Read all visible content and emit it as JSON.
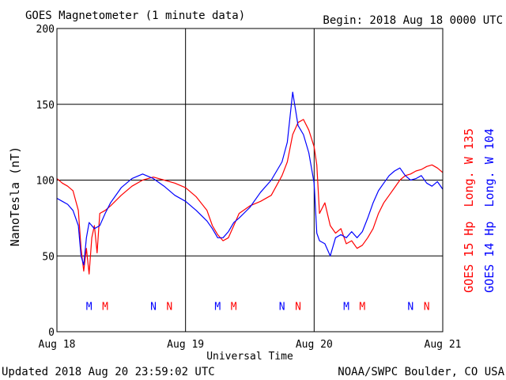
{
  "chart_data": {
    "type": "line",
    "title": "GOES Magnetometer (1 minute data)",
    "begin_label": "Begin:  2018 Aug 18 0000 UTC",
    "xlabel": "Universal Time",
    "ylabel": "NanoTesla (nT)",
    "ylim": [
      0,
      200
    ],
    "yticks": [
      "0",
      "50",
      "100",
      "150",
      "200"
    ],
    "xlim": [
      0,
      72
    ],
    "x_unit": "hours since 2018 Aug 18 0000 UTC",
    "xticks": [
      {
        "x": 0,
        "label": "Aug 18"
      },
      {
        "x": 24,
        "label": "Aug 19"
      },
      {
        "x": 48,
        "label": "Aug 20"
      },
      {
        "x": 72,
        "label": "Aug 21"
      }
    ],
    "grid": true,
    "series": [
      {
        "name": "GOES 15 Hp  Long. W 135",
        "color": "#ff0000",
        "points": [
          [
            0,
            101
          ],
          [
            1,
            98
          ],
          [
            2,
            96
          ],
          [
            3,
            93
          ],
          [
            4,
            80
          ],
          [
            4.5,
            55
          ],
          [
            5,
            40
          ],
          [
            5.5,
            55
          ],
          [
            6,
            38
          ],
          [
            6.5,
            62
          ],
          [
            7,
            70
          ],
          [
            7.5,
            52
          ],
          [
            8,
            78
          ],
          [
            9,
            80
          ],
          [
            10,
            83
          ],
          [
            12,
            90
          ],
          [
            14,
            96
          ],
          [
            16,
            100
          ],
          [
            18,
            102
          ],
          [
            20,
            100
          ],
          [
            22,
            98
          ],
          [
            24,
            95
          ],
          [
            26,
            89
          ],
          [
            28,
            80
          ],
          [
            29,
            70
          ],
          [
            30,
            64
          ],
          [
            31,
            60
          ],
          [
            32,
            62
          ],
          [
            33,
            70
          ],
          [
            34,
            78
          ],
          [
            36,
            83
          ],
          [
            38,
            86
          ],
          [
            40,
            90
          ],
          [
            42,
            103
          ],
          [
            43,
            112
          ],
          [
            44,
            130
          ],
          [
            45,
            138
          ],
          [
            46,
            140
          ],
          [
            47,
            133
          ],
          [
            48,
            122
          ],
          [
            48.5,
            110
          ],
          [
            49,
            78
          ],
          [
            50,
            85
          ],
          [
            51,
            70
          ],
          [
            52,
            65
          ],
          [
            53,
            68
          ],
          [
            54,
            58
          ],
          [
            55,
            60
          ],
          [
            56,
            55
          ],
          [
            57,
            57
          ],
          [
            58,
            62
          ],
          [
            59,
            68
          ],
          [
            60,
            78
          ],
          [
            61,
            85
          ],
          [
            62,
            90
          ],
          [
            63,
            95
          ],
          [
            64,
            100
          ],
          [
            65,
            103
          ],
          [
            66,
            104
          ],
          [
            67,
            106
          ],
          [
            68,
            107
          ],
          [
            69,
            109
          ],
          [
            70,
            110
          ],
          [
            71,
            108
          ],
          [
            72,
            105
          ]
        ]
      },
      {
        "name": "GOES 14 Hp  Long. W 104",
        "color": "#0000ff",
        "points": [
          [
            0,
            88
          ],
          [
            1,
            86
          ],
          [
            2,
            84
          ],
          [
            3,
            80
          ],
          [
            4,
            70
          ],
          [
            4.5,
            50
          ],
          [
            5,
            44
          ],
          [
            5.5,
            62
          ],
          [
            6,
            72
          ],
          [
            7,
            68
          ],
          [
            8,
            70
          ],
          [
            9,
            78
          ],
          [
            10,
            85
          ],
          [
            12,
            95
          ],
          [
            14,
            101
          ],
          [
            16,
            104
          ],
          [
            18,
            101
          ],
          [
            20,
            96
          ],
          [
            22,
            90
          ],
          [
            24,
            86
          ],
          [
            26,
            80
          ],
          [
            28,
            73
          ],
          [
            29,
            68
          ],
          [
            30,
            62
          ],
          [
            31,
            62
          ],
          [
            32,
            66
          ],
          [
            33,
            72
          ],
          [
            34,
            75
          ],
          [
            36,
            82
          ],
          [
            38,
            92
          ],
          [
            40,
            100
          ],
          [
            42,
            112
          ],
          [
            43,
            125
          ],
          [
            44,
            158
          ],
          [
            45,
            136
          ],
          [
            46,
            130
          ],
          [
            47,
            118
          ],
          [
            48,
            98
          ],
          [
            48.5,
            65
          ],
          [
            49,
            60
          ],
          [
            50,
            58
          ],
          [
            51,
            50
          ],
          [
            52,
            62
          ],
          [
            53,
            64
          ],
          [
            54,
            62
          ],
          [
            55,
            66
          ],
          [
            56,
            62
          ],
          [
            57,
            66
          ],
          [
            58,
            75
          ],
          [
            59,
            85
          ],
          [
            60,
            93
          ],
          [
            61,
            98
          ],
          [
            62,
            103
          ],
          [
            63,
            106
          ],
          [
            64,
            108
          ],
          [
            65,
            103
          ],
          [
            66,
            100
          ],
          [
            67,
            101
          ],
          [
            68,
            103
          ],
          [
            69,
            98
          ],
          [
            70,
            96
          ],
          [
            71,
            99
          ],
          [
            72,
            94
          ]
        ]
      }
    ],
    "markers": [
      {
        "x": 6.0,
        "label": "M",
        "color": "#0000ff"
      },
      {
        "x": 9.0,
        "label": "M",
        "color": "#ff0000"
      },
      {
        "x": 18.0,
        "label": "N",
        "color": "#0000ff"
      },
      {
        "x": 21.0,
        "label": "N",
        "color": "#ff0000"
      },
      {
        "x": 30.0,
        "label": "M",
        "color": "#0000ff"
      },
      {
        "x": 33.0,
        "label": "M",
        "color": "#ff0000"
      },
      {
        "x": 42.0,
        "label": "N",
        "color": "#0000ff"
      },
      {
        "x": 45.0,
        "label": "N",
        "color": "#ff0000"
      },
      {
        "x": 54.0,
        "label": "M",
        "color": "#0000ff"
      },
      {
        "x": 57.0,
        "label": "M",
        "color": "#ff0000"
      },
      {
        "x": 66.0,
        "label": "N",
        "color": "#0000ff"
      },
      {
        "x": 69.0,
        "label": "N",
        "color": "#ff0000"
      }
    ],
    "marker_y": 17
  },
  "footer": {
    "updated": "Updated 2018 Aug 20 23:59:02 UTC",
    "credit": "NOAA/SWPC Boulder, CO USA"
  }
}
